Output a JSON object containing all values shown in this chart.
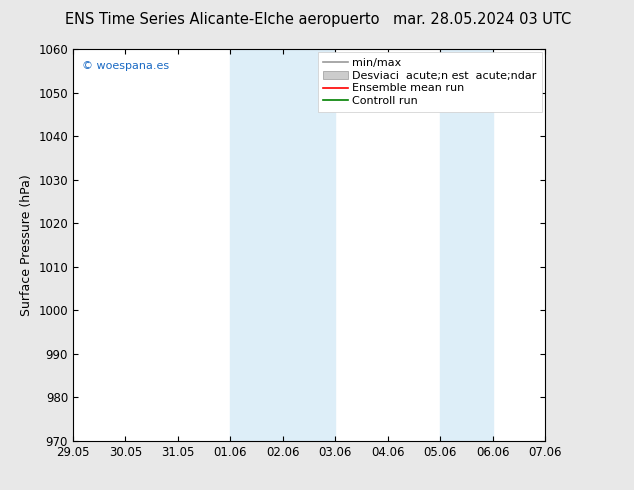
{
  "title_left": "ENS Time Series Alicante-Elche aeropuerto",
  "title_right": "mar. 28.05.2024 03 UTC",
  "ylabel": "Surface Pressure (hPa)",
  "ylim": [
    970,
    1060
  ],
  "yticks": [
    970,
    980,
    990,
    1000,
    1010,
    1020,
    1030,
    1040,
    1050,
    1060
  ],
  "x_tick_labels": [
    "29.05",
    "30.05",
    "31.05",
    "01.06",
    "02.06",
    "03.06",
    "04.06",
    "05.06",
    "06.06",
    "07.06"
  ],
  "x_tick_positions": [
    0,
    1,
    2,
    3,
    4,
    5,
    6,
    7,
    8,
    9
  ],
  "shaded_bands": [
    {
      "xmin": 3,
      "xmax": 5
    },
    {
      "xmin": 7,
      "xmax": 8
    }
  ],
  "shade_color": "#ddeef8",
  "background_color": "#ffffff",
  "fig_background": "#e8e8e8",
  "watermark": "© woespana.es",
  "watermark_color": "#1a6ac4",
  "legend_label_minmax": "min/max",
  "legend_label_std": "Desviaci  acute;n est  acute;ndar",
  "legend_label_ensemble": "Ensemble mean run",
  "legend_label_control": "Controll run",
  "legend_color_minmax": "#999999",
  "legend_color_std": "#cccccc",
  "legend_color_ensemble": "#ff0000",
  "legend_color_control": "#008000",
  "title_fontsize": 10.5,
  "axis_label_fontsize": 9,
  "tick_fontsize": 8.5,
  "legend_fontsize": 8
}
